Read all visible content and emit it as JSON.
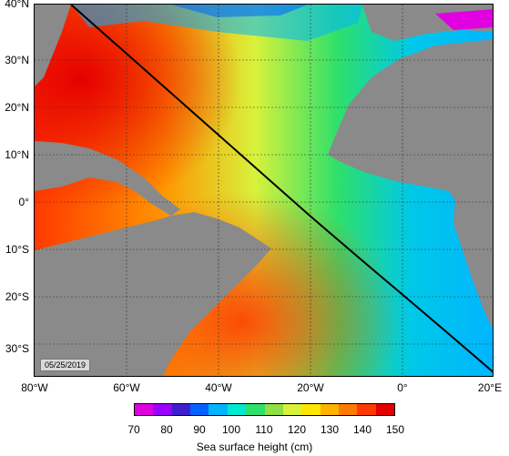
{
  "map": {
    "lat_labels": [
      "40°N",
      "30°N",
      "20°N",
      "10°N",
      "0°",
      "10°S",
      "20°S",
      "30°S"
    ],
    "lon_labels": [
      "80°W",
      "60°W",
      "40°W",
      "20°W",
      "0°",
      "20°E"
    ],
    "date": "05/25/2019"
  },
  "colorbar": {
    "ticks": [
      "70",
      "80",
      "90",
      "100",
      "110",
      "120",
      "130",
      "140",
      "150"
    ],
    "colors": [
      "#e000e0",
      "#9b00ff",
      "#3d1fcf",
      "#0063ff",
      "#00b5ff",
      "#00e8d2",
      "#2ee06b",
      "#8fe042",
      "#d8f23b",
      "#ffe600",
      "#ffb300",
      "#ff7a00",
      "#ff3a00",
      "#e60000"
    ],
    "label": "Sea surface height (cm)"
  },
  "colors": {
    "land": "#8a8a8a",
    "track": "#000000"
  }
}
